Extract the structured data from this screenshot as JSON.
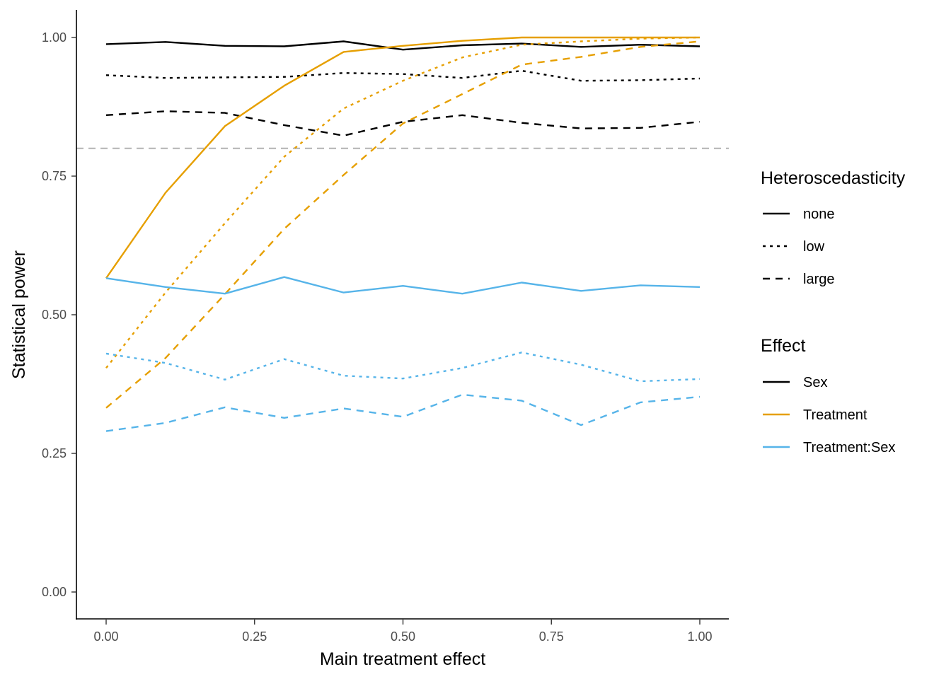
{
  "chart_data": {
    "type": "line",
    "xlabel": "Main treatment effect",
    "ylabel": "Statistical power",
    "xlim": [
      -0.05,
      1.05
    ],
    "ylim": [
      -0.05,
      1.05
    ],
    "x_ticks": [
      "0.00",
      "0.25",
      "0.50",
      "0.75",
      "1.00"
    ],
    "y_ticks": [
      "0.00",
      "0.25",
      "0.50",
      "0.75",
      "1.00"
    ],
    "x": [
      0.0,
      0.1,
      0.2,
      0.3,
      0.4,
      0.5,
      0.6,
      0.7,
      0.8,
      0.9,
      1.0
    ],
    "reference_line": {
      "y": 0.8,
      "color": "#b3b3b3",
      "style": "dashed"
    },
    "grid": false,
    "legend_position": "right",
    "legends": [
      {
        "title": "Heteroscedasticity",
        "items": [
          {
            "label": "none",
            "dash": "solid"
          },
          {
            "label": "low",
            "dash": "dotted"
          },
          {
            "label": "large",
            "dash": "dashed"
          }
        ]
      },
      {
        "title": "Effect",
        "items": [
          {
            "label": "Sex",
            "color": "#000000"
          },
          {
            "label": "Treatment",
            "color": "#E69F00"
          },
          {
            "label": "Treatment:Sex",
            "color": "#56B4E9"
          }
        ]
      }
    ],
    "series": [
      {
        "effect": "Sex",
        "heteroscedasticity": "none",
        "color": "#000000",
        "dash": "solid",
        "values": [
          0.988,
          0.992,
          0.985,
          0.984,
          0.993,
          0.978,
          0.986,
          0.989,
          0.983,
          0.987,
          0.984
        ]
      },
      {
        "effect": "Sex",
        "heteroscedasticity": "low",
        "color": "#000000",
        "dash": "dotted",
        "values": [
          0.932,
          0.927,
          0.928,
          0.929,
          0.936,
          0.934,
          0.927,
          0.94,
          0.922,
          0.923,
          0.926
        ]
      },
      {
        "effect": "Sex",
        "heteroscedasticity": "large",
        "color": "#000000",
        "dash": "dashed",
        "values": [
          0.86,
          0.867,
          0.864,
          0.842,
          0.823,
          0.848,
          0.86,
          0.846,
          0.836,
          0.837,
          0.848
        ]
      },
      {
        "effect": "Treatment",
        "heteroscedasticity": "none",
        "color": "#E69F00",
        "dash": "solid",
        "values": [
          0.566,
          0.72,
          0.84,
          0.913,
          0.974,
          0.985,
          0.994,
          1.0,
          1.0,
          1.0,
          1.0
        ]
      },
      {
        "effect": "Treatment",
        "heteroscedasticity": "low",
        "color": "#E69F00",
        "dash": "dotted",
        "values": [
          0.404,
          0.54,
          0.665,
          0.785,
          0.872,
          0.922,
          0.964,
          0.987,
          0.993,
          0.998,
          1.0
        ]
      },
      {
        "effect": "Treatment",
        "heteroscedasticity": "large",
        "color": "#E69F00",
        "dash": "dashed",
        "values": [
          0.332,
          0.422,
          0.537,
          0.655,
          0.752,
          0.845,
          0.898,
          0.951,
          0.965,
          0.983,
          0.993
        ]
      },
      {
        "effect": "Treatment:Sex",
        "heteroscedasticity": "none",
        "color": "#56B4E9",
        "dash": "solid",
        "values": [
          0.566,
          0.55,
          0.538,
          0.568,
          0.54,
          0.552,
          0.538,
          0.558,
          0.543,
          0.553,
          0.55
        ]
      },
      {
        "effect": "Treatment:Sex",
        "heteroscedasticity": "low",
        "color": "#56B4E9",
        "dash": "dotted",
        "values": [
          0.43,
          0.413,
          0.383,
          0.42,
          0.39,
          0.385,
          0.404,
          0.432,
          0.41,
          0.38,
          0.384
        ]
      },
      {
        "effect": "Treatment:Sex",
        "heteroscedasticity": "large",
        "color": "#56B4E9",
        "dash": "dashed",
        "values": [
          0.29,
          0.305,
          0.333,
          0.314,
          0.331,
          0.316,
          0.356,
          0.345,
          0.301,
          0.342,
          0.352
        ]
      }
    ]
  }
}
